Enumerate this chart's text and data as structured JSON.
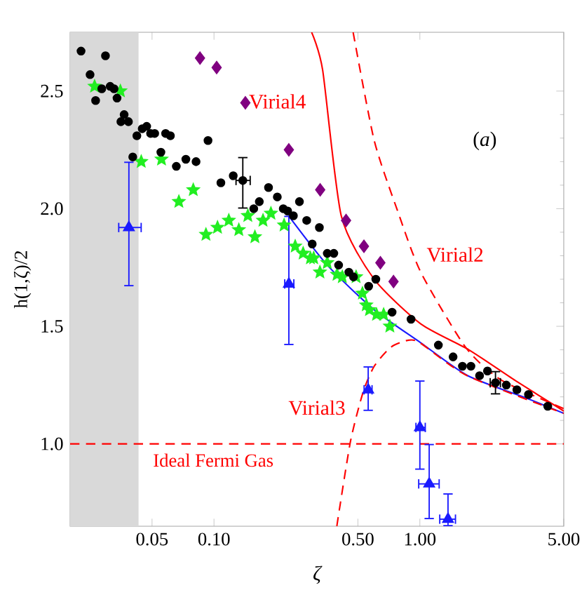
{
  "chart_data": {
    "type": "scatter",
    "xlabel": "ζ",
    "ylabel": "h(1,ζ)/2",
    "log": "x",
    "xlim": [
      0.02,
      5
    ],
    "ylim": [
      0.65,
      2.75
    ],
    "xticks": [
      0.05,
      {
        "value": 0.1,
        "label": "0.10"
      },
      {
        "value": 0.5,
        "label": "0.50"
      },
      {
        "value": 1,
        "label": "1.00"
      },
      {
        "value": 5,
        "label": "5.00"
      }
    ],
    "yticks": [
      {
        "value": 1,
        "label": "1.0"
      },
      1.5,
      {
        "value": 2,
        "label": "2.0"
      },
      2.5
    ],
    "bands": [
      {
        "axis": "x",
        "from": 0.02,
        "to": 0.043,
        "color": "#d9d9d9"
      }
    ],
    "ref_lines": [
      {
        "axis": "y",
        "value": 1.0,
        "label": "Ideal Fermi Gas",
        "color": "#ff0000",
        "line_style": "dashed"
      }
    ],
    "annotations": [
      "Virial4",
      "Virial2",
      "Virial3",
      "(*a*)"
    ],
    "series": [
      {
        "marker": "star",
        "color": "#22ee22",
        "x": [
          0.0263,
          0.0351,
          0.0443,
          0.0556,
          0.0675,
          0.0793,
          0.0914,
          0.104,
          0.118,
          0.132,
          0.146,
          0.158,
          0.173,
          0.189,
          0.219,
          0.248,
          0.271,
          0.294,
          0.305,
          0.327,
          0.355,
          0.396,
          0.42,
          0.49,
          0.526,
          0.549,
          0.569,
          0.616,
          0.667,
          0.715
        ],
        "values": [
          2.52,
          2.5,
          2.2,
          2.21,
          2.03,
          2.08,
          1.89,
          1.92,
          1.95,
          1.91,
          1.97,
          1.88,
          1.95,
          1.98,
          1.93,
          1.84,
          1.81,
          1.79,
          1.79,
          1.73,
          1.77,
          1.72,
          1.71,
          1.71,
          1.64,
          1.59,
          1.57,
          1.55,
          1.55,
          1.5
        ]
      },
      {
        "marker": "circle",
        "color": "#000000",
        "x": [
          0.0226,
          0.025,
          0.0266,
          0.0285,
          0.0297,
          0.0313,
          0.0327,
          0.0338,
          0.0353,
          0.0366,
          0.0384,
          0.0403,
          0.0422,
          0.0448,
          0.0471,
          0.0492,
          0.0515,
          0.0552,
          0.0582,
          0.0614,
          0.0656,
          0.073,
          0.0818,
          0.0935,
          0.108,
          0.124,
          0.138,
          0.156,
          0.166,
          0.184,
          0.203,
          0.217,
          0.228,
          0.243,
          0.26,
          0.282,
          0.3,
          0.325,
          0.355,
          0.382,
          0.403,
          0.452,
          0.476,
          0.564,
          0.611,
          0.733,
          0.906,
          1.23,
          1.45,
          1.61,
          1.77,
          1.95,
          2.13,
          2.33,
          2.63,
          2.96,
          3.37,
          4.18
        ],
        "values": [
          2.67,
          2.57,
          2.46,
          2.51,
          2.65,
          2.52,
          2.51,
          2.47,
          2.37,
          2.4,
          2.37,
          2.22,
          2.31,
          2.34,
          2.35,
          2.32,
          2.32,
          2.24,
          2.32,
          2.31,
          2.18,
          2.21,
          2.2,
          2.29,
          2.11,
          2.14,
          2.12,
          2.0,
          2.03,
          2.09,
          2.05,
          2.0,
          1.99,
          1.97,
          2.03,
          1.95,
          1.85,
          1.92,
          1.81,
          1.81,
          1.76,
          1.73,
          1.71,
          1.67,
          1.7,
          1.56,
          1.53,
          1.42,
          1.37,
          1.33,
          1.33,
          1.29,
          1.31,
          1.26,
          1.25,
          1.23,
          1.21,
          1.16
        ],
        "errors": [
          null,
          null,
          null,
          null,
          null,
          null,
          null,
          null,
          null,
          null,
          null,
          null,
          null,
          null,
          null,
          null,
          null,
          null,
          null,
          null,
          null,
          null,
          null,
          null,
          null,
          null,
          [
            2.0,
            2.22
          ],
          null,
          null,
          null,
          null,
          null,
          null,
          null,
          null,
          null,
          null,
          null,
          null,
          null,
          null,
          null,
          null,
          null,
          null,
          null,
          null,
          null,
          null,
          null,
          null,
          null,
          null,
          [
            1.21,
            1.31
          ],
          null,
          null,
          null,
          null
        ],
        "xerrors": [
          null,
          null,
          null,
          null,
          null,
          null,
          null,
          null,
          null,
          null,
          null,
          null,
          null,
          null,
          null,
          null,
          null,
          null,
          null,
          null,
          null,
          null,
          null,
          null,
          null,
          null,
          [
            0.127,
            0.151
          ],
          null,
          null,
          null,
          null,
          null,
          null,
          null,
          null,
          null,
          null,
          null,
          null,
          null,
          null,
          null,
          null,
          null,
          null,
          null,
          null,
          null,
          null,
          null,
          null,
          null,
          null,
          [
            2.18,
            2.48
          ],
          null,
          null,
          null,
          null
        ]
      },
      {
        "marker": "diamond",
        "color": "#800080",
        "x": [
          0.0855,
          0.103,
          0.142,
          0.231,
          0.328,
          0.438,
          0.535,
          0.643,
          0.745
        ],
        "values": [
          2.64,
          2.6,
          2.45,
          2.25,
          2.08,
          1.95,
          1.84,
          1.77,
          1.69
        ]
      },
      {
        "marker": "triangle",
        "color": "#1a1aff",
        "x": [
          0.0386,
          0.231,
          0.561,
          1.0,
          1.11,
          1.37
        ],
        "values": [
          1.92,
          1.68,
          1.23,
          1.07,
          0.83,
          0.68
        ],
        "errors": [
          [
            1.67,
            2.2
          ],
          [
            1.42,
            1.97
          ],
          [
            1.14,
            1.33
          ],
          [
            0.89,
            1.27
          ],
          [
            0.68,
            1.0
          ],
          [
            0.65,
            0.79
          ]
        ],
        "xerrors": [
          [
            0.0342,
            0.0446
          ],
          [
            0.219,
            0.246
          ],
          [
            0.532,
            0.59
          ],
          [
            0.95,
            1.07
          ],
          [
            0.98,
            1.25
          ],
          [
            1.24,
            1.5
          ]
        ]
      },
      {
        "type": "line",
        "marker": "none",
        "line_style": "solid",
        "color": "#1a1aff",
        "x": [
          0.23,
          0.355,
          0.6,
          1.01,
          1.71,
          3.4,
          5
        ],
        "values": [
          1.97,
          1.76,
          1.57,
          1.43,
          1.29,
          1.19,
          1.13
        ]
      },
      {
        "type": "line",
        "marker": "none",
        "line_style": "solid",
        "color": "#ff0000",
        "x": [
          0.298,
          0.337,
          0.415,
          0.6,
          1.01,
          1.73,
          2.9,
          5
        ],
        "values": [
          2.75,
          2.59,
          1.97,
          1.7,
          1.51,
          1.4,
          1.27,
          1.14
        ]
      },
      {
        "type": "line",
        "marker": "none",
        "line_style": "dashed",
        "color": "#ff0000",
        "x": [
          0.474,
          0.6,
          0.78,
          1.01,
          1.67,
          2.5,
          5
        ],
        "values": [
          2.75,
          2.29,
          1.99,
          1.73,
          1.41,
          1.27,
          1.15
        ]
      },
      {
        "type": "line",
        "marker": "none",
        "line_style": "dashed",
        "color": "#ff0000",
        "x": [
          0.395,
          0.46,
          0.53,
          0.6,
          0.72,
          0.87,
          1.0,
          1.7,
          5
        ],
        "values": [
          0.65,
          1.01,
          1.22,
          1.33,
          1.41,
          1.44,
          1.43,
          1.29,
          1.13
        ]
      }
    ]
  }
}
